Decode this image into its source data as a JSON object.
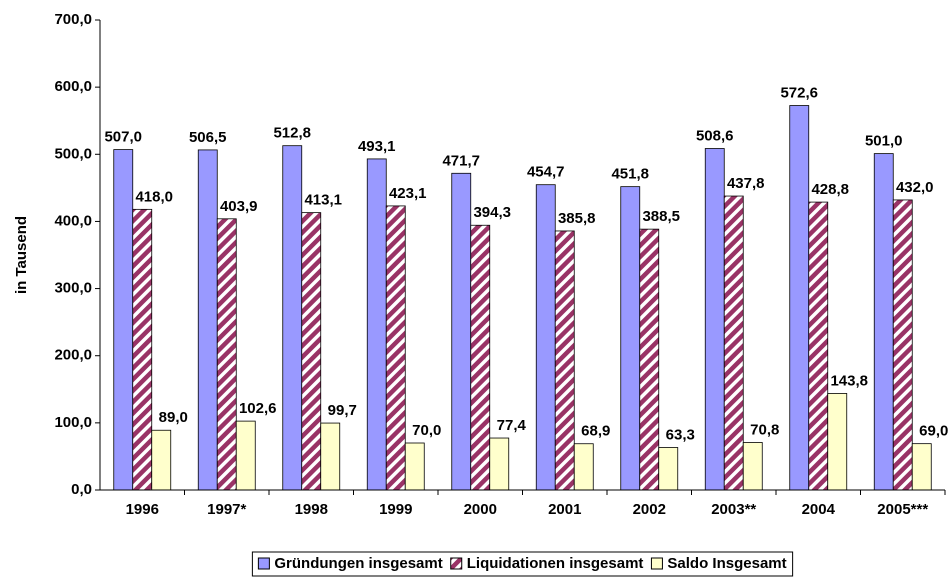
{
  "chart_data": {
    "type": "bar",
    "y_label": "in Tausend",
    "categories": [
      "1996",
      "1997*",
      "1998",
      "1999",
      "2000",
      "2001",
      "2002",
      "2003**",
      "2004",
      "2005***"
    ],
    "series": [
      {
        "name": "Gründungen insgesamt",
        "color": "#9999ff",
        "pattern": "solid",
        "values": [
          507.0,
          506.5,
          512.8,
          493.1,
          471.7,
          454.7,
          451.8,
          508.6,
          572.6,
          501.0
        ],
        "value_labels": [
          "507,0",
          "506,5",
          "512,8",
          "493,1",
          "471,7",
          "454,7",
          "451,8",
          "508,6",
          "572,6",
          "501,0"
        ]
      },
      {
        "name": "Liquidationen insgesamt",
        "color": "#993366",
        "pattern": "diagonal",
        "values": [
          418.0,
          403.9,
          413.1,
          423.1,
          394.3,
          385.8,
          388.5,
          437.8,
          428.8,
          432.0
        ],
        "value_labels": [
          "418,0",
          "403,9",
          "413,1",
          "423,1",
          "394,3",
          "385,8",
          "388,5",
          "437,8",
          "428,8",
          "432,0"
        ]
      },
      {
        "name": "Saldo Insgesamt",
        "color": "#ffffcc",
        "pattern": "solid",
        "values": [
          89.0,
          102.6,
          99.7,
          70.0,
          77.4,
          68.9,
          63.3,
          70.8,
          143.8,
          69.0
        ],
        "value_labels": [
          "89,0",
          "102,6",
          "99,7",
          "70,0",
          "77,4",
          "68,9",
          "63,3",
          "70,8",
          "143,8",
          "69,0"
        ]
      }
    ],
    "ylim": [
      0,
      700
    ],
    "yticks": [
      {
        "value": 0,
        "label": "0,0"
      },
      {
        "value": 100,
        "label": "100,0"
      },
      {
        "value": 200,
        "label": "200,0"
      },
      {
        "value": 300,
        "label": "300,0"
      },
      {
        "value": 400,
        "label": "400,0"
      },
      {
        "value": 500,
        "label": "500,0"
      },
      {
        "value": 600,
        "label": "600,0"
      },
      {
        "value": 700,
        "label": "700,0"
      }
    ],
    "grid": false,
    "legend": "bottom"
  }
}
